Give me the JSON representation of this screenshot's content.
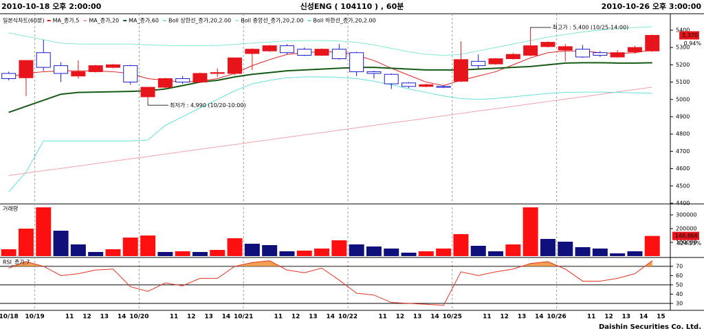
{
  "header": {
    "start": "2010-10-18 오후 2:00:00",
    "title": "신성ENG ( 104110 ) , 60분",
    "end": "2010-10-26 오후 3:00:00"
  },
  "footer": "Daishin Securities Co. Ltd.",
  "chart_data": [
    {
      "type": "candlestick",
      "legend_title": "일본식차트(60분)",
      "categories": [
        "10/18",
        "10/19",
        null,
        "11",
        "12",
        "13",
        "14",
        "10/20",
        null,
        "11",
        "12",
        "13",
        "14",
        "10/21",
        null,
        "11",
        "12",
        "13",
        "14",
        "10/22",
        null,
        "11",
        "12",
        "13",
        "14",
        "10/25",
        null,
        "11",
        "12",
        "13",
        "14",
        "10/26",
        null,
        "11",
        "12",
        "13",
        "14",
        "15"
      ],
      "open": [
        5150,
        5125,
        5270,
        5195,
        5135,
        5160,
        5185,
        5195,
        5015,
        5070,
        5120,
        5100,
        5150,
        5150,
        5265,
        5280,
        5310,
        5290,
        5255,
        5290,
        5270,
        5160,
        5145,
        5095,
        5075,
        5075,
        5105,
        5220,
        5205,
        5235,
        5255,
        5305,
        5285,
        5290,
        5270,
        5245,
        5275,
        5280
      ],
      "high": [
        5160,
        5225,
        5345,
        5215,
        5225,
        5200,
        5205,
        5200,
        5070,
        5125,
        5135,
        5155,
        5180,
        5240,
        5295,
        5315,
        5320,
        5300,
        5295,
        5320,
        5275,
        5165,
        5150,
        5100,
        5090,
        5080,
        5335,
        5260,
        5240,
        5270,
        5400,
        5335,
        5320,
        5315,
        5280,
        5285,
        5310,
        5375
      ],
      "low": [
        5110,
        5020,
        5165,
        5100,
        5120,
        5155,
        5180,
        5085,
        4990,
        5065,
        5090,
        5095,
        5130,
        5140,
        5170,
        5275,
        5260,
        5250,
        5250,
        5230,
        5135,
        5120,
        5060,
        5065,
        5070,
        5065,
        5100,
        5175,
        5200,
        5230,
        5250,
        5300,
        5220,
        5240,
        5245,
        5240,
        5265,
        5275
      ],
      "close": [
        5120,
        5225,
        5185,
        5150,
        5160,
        5195,
        5200,
        5100,
        5070,
        5120,
        5100,
        5150,
        5155,
        5240,
        5290,
        5310,
        5270,
        5255,
        5290,
        5235,
        5160,
        5150,
        5090,
        5075,
        5085,
        5070,
        5230,
        5195,
        5235,
        5260,
        5310,
        5330,
        5305,
        5245,
        5255,
        5270,
        5300,
        5370
      ],
      "up_color": "#e8141c",
      "down_color": "#1a1ad0",
      "series": [
        {
          "name": "MA_종가,5",
          "color": "#e02020",
          "values": [
            5130,
            5150,
            5160,
            5165,
            5165,
            5165,
            5160,
            5150,
            5120,
            5110,
            5100,
            5105,
            5120,
            5150,
            5195,
            5230,
            5260,
            5270,
            5275,
            5275,
            5255,
            5225,
            5180,
            5140,
            5100,
            5080,
            5110,
            5135,
            5160,
            5200,
            5240,
            5270,
            5280,
            5280,
            5270,
            5265,
            5270,
            5285
          ]
        },
        {
          "name": "MA_종가,20",
          "color": "#f4a0a8",
          "values": [
            4560,
            4574,
            4588,
            4601,
            4615,
            4629,
            4643,
            4657,
            4670,
            4684,
            4698,
            4712,
            4726,
            4739,
            4753,
            4767,
            4781,
            4795,
            4808,
            4822,
            4836,
            4850,
            4864,
            4877,
            4891,
            4905,
            4919,
            4933,
            4946,
            4960,
            4974,
            4988,
            5002,
            5015,
            5029,
            5043,
            5057,
            5071
          ]
        },
        {
          "name": "MA_종가,60",
          "color": "#145a14",
          "values": [
            4925,
            4960,
            4995,
            5030,
            5040,
            5042,
            5044,
            5046,
            5050,
            5060,
            5080,
            5100,
            5110,
            5130,
            5145,
            5155,
            5165,
            5170,
            5175,
            5180,
            5185,
            5185,
            5180,
            5175,
            5170,
            5170,
            5170,
            5175,
            5180,
            5185,
            5190,
            5200,
            5210,
            5212,
            5212,
            5210,
            5210,
            5212
          ]
        },
        {
          "name": "Boll 상한선_종가,20,2.00",
          "color": "#80e8d0",
          "values": [
            5385,
            5365,
            5345,
            5325,
            5320,
            5320,
            5320,
            5320,
            5315,
            5312,
            5310,
            5310,
            5312,
            5318,
            5325,
            5332,
            5338,
            5340,
            5340,
            5338,
            5330,
            5315,
            5295,
            5275,
            5260,
            5255,
            5260,
            5280,
            5300,
            5320,
            5340,
            5360,
            5375,
            5390,
            5400,
            5410,
            5415,
            5420
          ]
        },
        {
          "name": "Boll 중앙선_종가,20,2.00",
          "color": "#a8e8e0"
        },
        {
          "name": "Boll 하한선_종가,20,2.00",
          "color": "#60e0d8",
          "values": [
            4465,
            4580,
            4760,
            4760,
            4760,
            4760,
            4760,
            4760,
            4765,
            4850,
            4900,
            4950,
            5000,
            5050,
            5090,
            5110,
            5125,
            5130,
            5130,
            5128,
            5120,
            5105,
            5085,
            5060,
            5040,
            5020,
            5005,
            5000,
            5005,
            5015,
            5025,
            5035,
            5040,
            5042,
            5042,
            5040,
            5038,
            5035
          ]
        }
      ],
      "ylim": [
        4400,
        5495
      ],
      "yticks": [
        4400,
        4500,
        4600,
        4700,
        4800,
        4900,
        5000,
        5100,
        5200,
        5300,
        5400
      ],
      "annotations": [
        {
          "text": "최저가 : 4,990 (10/20-10:00)",
          "value": 4990,
          "color": "#1a1ad0"
        },
        {
          "text": "최고가 : 5,400 (10/25-14:00)",
          "value": 5400,
          "color": "#e8141c"
        }
      ],
      "last_value_label": "5,370",
      "change_label": "0.94%"
    },
    {
      "type": "bar",
      "title": "거래량",
      "values": [
        50000,
        200000,
        355000,
        185000,
        85000,
        30000,
        50000,
        135000,
        150000,
        30000,
        35000,
        30000,
        45000,
        130000,
        90000,
        80000,
        35000,
        40000,
        55000,
        115000,
        85000,
        70000,
        55000,
        25000,
        35000,
        55000,
        160000,
        75000,
        35000,
        85000,
        355000,
        125000,
        105000,
        65000,
        55000,
        20000,
        35000,
        146868
      ],
      "colors": [
        "#ff1010",
        "#ff1010",
        "#ff1010",
        "#10107c",
        "#10107c",
        "#10107c",
        "#ff1010",
        "#ff1010",
        "#ff1010",
        "#10107c",
        "#ff1010",
        "#10107c",
        "#ff1010",
        "#ff1010",
        "#10107c",
        "#10107c",
        "#10107c",
        "#ff1010",
        "#ff1010",
        "#ff1010",
        "#10107c",
        "#10107c",
        "#10107c",
        "#10107c",
        "#ff1010",
        "#ff1010",
        "#ff1010",
        "#10107c",
        "#10107c",
        "#ff1010",
        "#ff1010",
        "#10107c",
        "#10107c",
        "#10107c",
        "#10107c",
        "#10107c",
        "#10107c",
        "#ff1010"
      ],
      "ylim": [
        0,
        375000
      ],
      "yticks": [
        100000,
        200000,
        300000
      ],
      "last_value_label": "146,868",
      "change_label": "424.23%"
    },
    {
      "type": "line",
      "title": "RSI_종가,7",
      "color": "#e83020",
      "values": [
        68,
        75,
        70,
        60,
        62,
        66,
        67,
        48,
        43,
        52,
        49,
        57,
        57,
        70,
        74,
        76,
        66,
        63,
        68,
        55,
        41,
        39,
        31,
        30,
        29,
        28,
        64,
        60,
        64,
        67,
        73,
        75,
        67,
        54,
        54,
        57,
        62,
        76
      ],
      "ylim": [
        24,
        78
      ],
      "yticks": [
        30,
        40,
        50,
        60,
        70
      ],
      "reference_lines": [
        30,
        50,
        70
      ],
      "fill_above": 70,
      "fill_color": "#f0a050"
    }
  ]
}
